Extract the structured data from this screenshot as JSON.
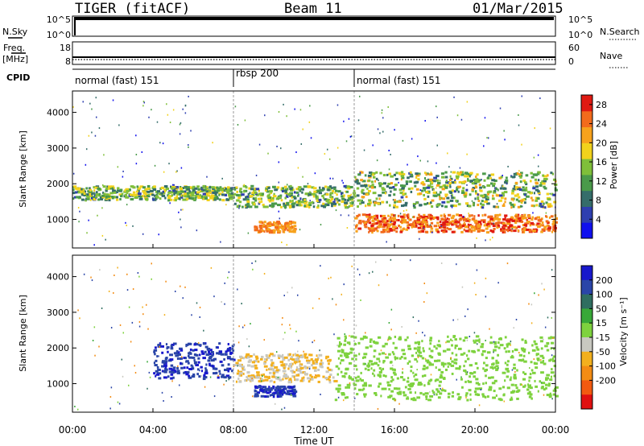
{
  "header": {
    "station": "TIGER (fitACF)",
    "beam": "Beam 11",
    "date": "01/Mar/2015"
  },
  "strip_panels": {
    "nsky": {
      "label": "N.Sky",
      "ticks": [
        "10^5",
        "10^0"
      ]
    },
    "nsearch": {
      "label": "N.Search",
      "ticks": [
        "10^5",
        "10^0"
      ]
    },
    "freq": {
      "label_line1": "Freq.",
      "label_line2": "[MHz]",
      "ticks": [
        "18",
        "8"
      ]
    },
    "nave": {
      "label": "Nave",
      "ticks": [
        "60",
        "0"
      ]
    },
    "cpid": {
      "label": "CPID"
    }
  },
  "chart_data": [
    {
      "type": "heatmap",
      "name": "power",
      "title": "",
      "xlabel": "Time UT",
      "ylabel": "Slant Range [km]",
      "xlim": [
        0,
        24
      ],
      "ylim": [
        200,
        4600
      ],
      "x_tick_labels": [
        "00:00",
        "04:00",
        "08:00",
        "12:00",
        "16:00",
        "20:00",
        "00:00"
      ],
      "y_ticks": [
        1000,
        2000,
        3000,
        4000
      ],
      "colorbar": {
        "label": "Power [dB]",
        "ticks": [
          4,
          8,
          12,
          16,
          20,
          24,
          28
        ],
        "range": [
          0,
          30
        ],
        "colors": [
          "#1010ee",
          "#2e3fb0",
          "#356d6a",
          "#4a9a4a",
          "#7fbf3a",
          "#f2d21c",
          "#f7a21c",
          "#f26b1c",
          "#e01a12"
        ]
      },
      "cpid_segments": [
        {
          "label": "normal (fast) 151",
          "start": 0,
          "end": 8
        },
        {
          "label": "rbsp 200",
          "start": 8,
          "end": 14
        },
        {
          "label": "normal (fast) 151",
          "start": 14,
          "end": 24
        }
      ],
      "features": [
        {
          "t": [
            0,
            8
          ],
          "range_km": [
            1500,
            1900
          ],
          "power_db": [
            6,
            20
          ]
        },
        {
          "t": [
            8,
            14
          ],
          "range_km": [
            1300,
            1900
          ],
          "power_db": [
            6,
            20
          ]
        },
        {
          "t": [
            14,
            24
          ],
          "range_km": [
            1300,
            2300
          ],
          "power_db": [
            6,
            22
          ]
        },
        {
          "t": [
            14,
            24
          ],
          "range_km": [
            600,
            1100
          ],
          "power_db": [
            20,
            30
          ]
        },
        {
          "t": [
            9,
            11
          ],
          "range_km": [
            600,
            900
          ],
          "power_db": [
            20,
            26
          ]
        }
      ]
    },
    {
      "type": "heatmap",
      "name": "velocity",
      "title": "",
      "xlabel": "Time UT",
      "ylabel": "Slant Range [km]",
      "xlim": [
        0,
        24
      ],
      "ylim": [
        200,
        4600
      ],
      "x_tick_labels": [
        "00:00",
        "04:00",
        "08:00",
        "12:00",
        "16:00",
        "20:00",
        "00:00"
      ],
      "y_ticks": [
        1000,
        2000,
        3000,
        4000
      ],
      "colorbar": {
        "label": "Velocity [m s⁻¹]",
        "ticks": [
          "200",
          "100",
          "50",
          "15",
          "-15",
          "-50",
          "-100",
          "-200"
        ],
        "colors": [
          "#1818cc",
          "#2a45a8",
          "#2f6e60",
          "#38a838",
          "#7ed23e",
          "#c8c8c0",
          "#f3b01e",
          "#f38c14",
          "#f25a10",
          "#e01010"
        ]
      },
      "features": [
        {
          "t": [
            4,
            8
          ],
          "range_km": [
            1100,
            2100
          ],
          "velocity_ms": [
            100,
            250
          ]
        },
        {
          "t": [
            9,
            11
          ],
          "range_km": [
            600,
            900
          ],
          "velocity_ms": [
            150,
            250
          ]
        },
        {
          "t": [
            8,
            13
          ],
          "range_km": [
            1000,
            1800
          ],
          "velocity_ms": [
            -80,
            -20
          ]
        },
        {
          "t": [
            13,
            24
          ],
          "range_km": [
            500,
            2300
          ],
          "velocity_ms": [
            -15,
            15
          ]
        }
      ]
    }
  ]
}
